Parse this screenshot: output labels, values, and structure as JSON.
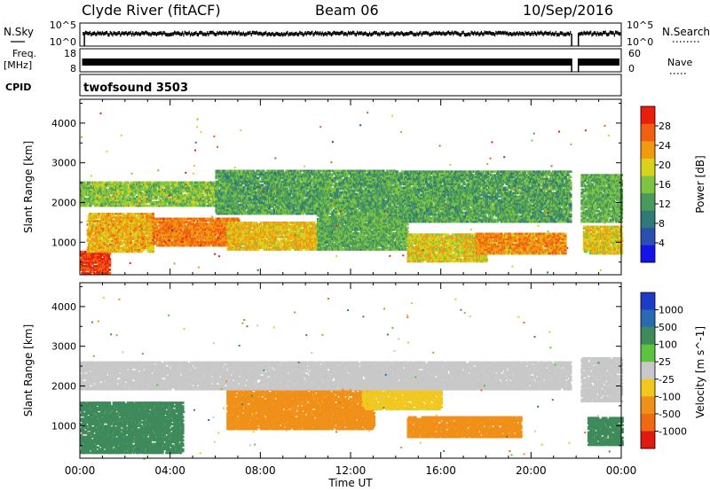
{
  "header": {
    "station": "Clyde River (fitACF)",
    "beam": "Beam 06",
    "date": "10/Sep/2016"
  },
  "strip_labels": {
    "nsky": "N.Sky",
    "freq_line1": "Freq.",
    "freq_line2": "[MHz]",
    "cpid": "CPID",
    "nsearch": "N.Search",
    "nave": "Nave",
    "nsky_top": "10^5",
    "nsky_bottom": "10^0",
    "freq_top": "18",
    "freq_bottom": "8",
    "nsearch_top": "10^5",
    "nsearch_bottom": "10^0",
    "nave_top": "60",
    "nave_bottom": "0"
  },
  "cpid_text": "twofsound 3503",
  "x_axis_title": "Time UT",
  "colors": {
    "power_scale": [
      "#1414e6",
      "#2a4fb0",
      "#2f7a78",
      "#4a9a5c",
      "#7cc442",
      "#d8d21e",
      "#f09a12",
      "#f06010",
      "#e81e0e"
    ],
    "velocity_scale": [
      "#1c3cc8",
      "#2a6ab0",
      "#3f8a5a",
      "#5cc43e",
      "#c8c8c8",
      "#f0c820",
      "#f09018",
      "#ef6a10",
      "#e01a10"
    ]
  },
  "chart_data": [
    {
      "type": "line",
      "name": "N.Sky / N.Search / Freq / Nave strips",
      "x_range_hours": [
        0,
        24
      ],
      "x_ticks": [
        "00:00",
        "04:00",
        "08:00",
        "12:00",
        "16:00",
        "20:00",
        "00:00"
      ],
      "data_gap_hours": [
        21.8,
        22.1
      ],
      "freq_level_mhz": 12,
      "nave_level": 25
    },
    {
      "type": "heatmap",
      "title": "Power",
      "ylabel": "Slant Range [km]",
      "xlabel": "",
      "x_range_hours": [
        0,
        24
      ],
      "ylim": [
        180,
        4600
      ],
      "y_ticks": [
        "1000",
        "2000",
        "3000",
        "4000"
      ],
      "x_ticks": [
        "00:00",
        "04:00",
        "08:00",
        "12:00",
        "16:00",
        "20:00",
        "00:00"
      ],
      "colorbar": {
        "label": "Power [dB]",
        "range": [
          0,
          32
        ],
        "ticks": [
          "4",
          "8",
          "12",
          "16",
          "20",
          "24",
          "28"
        ]
      },
      "bands": [
        {
          "t0": 0.0,
          "t1": 1.3,
          "r0": 200,
          "r1": 750,
          "v": 29
        },
        {
          "t0": 0.3,
          "t1": 3.2,
          "r0": 750,
          "r1": 1700,
          "v": 22
        },
        {
          "t0": 3.2,
          "t1": 7.0,
          "r0": 900,
          "r1": 1600,
          "v": 25
        },
        {
          "t0": 6.5,
          "t1": 10.5,
          "r0": 800,
          "r1": 1500,
          "v": 21
        },
        {
          "t0": 10.5,
          "t1": 14.5,
          "r0": 800,
          "r1": 1700,
          "v": 14
        },
        {
          "t0": 14.5,
          "t1": 18.0,
          "r0": 500,
          "r1": 1200,
          "v": 20
        },
        {
          "t0": 17.5,
          "t1": 21.5,
          "r0": 700,
          "r1": 1200,
          "v": 24
        },
        {
          "t0": 22.3,
          "t1": 24.0,
          "r0": 700,
          "r1": 1400,
          "v": 20
        },
        {
          "t0": 0.0,
          "t1": 6.0,
          "r0": 1900,
          "r1": 2500,
          "v": 16
        },
        {
          "t0": 6.0,
          "t1": 14.0,
          "r0": 1700,
          "r1": 2800,
          "v": 13
        },
        {
          "t0": 14.0,
          "t1": 21.7,
          "r0": 1500,
          "r1": 2800,
          "v": 13
        },
        {
          "t0": 22.2,
          "t1": 24.0,
          "r0": 1500,
          "r1": 2700,
          "v": 14
        }
      ]
    },
    {
      "type": "heatmap",
      "title": "Velocity",
      "ylabel": "Slant Range [km]",
      "xlabel": "Time UT",
      "x_range_hours": [
        0,
        24
      ],
      "ylim": [
        180,
        4600
      ],
      "y_ticks": [
        "1000",
        "2000",
        "3000",
        "4000"
      ],
      "x_ticks": [
        "00:00",
        "04:00",
        "08:00",
        "12:00",
        "16:00",
        "20:00",
        "00:00"
      ],
      "colorbar": {
        "label": "Velocity [m s^-1]",
        "ticks": [
          "1000",
          "500",
          "100",
          "25",
          "-25",
          "-100",
          "-500",
          "-1000"
        ]
      },
      "bands": [
        {
          "t0": 0.0,
          "t1": 4.5,
          "r0": 300,
          "r1": 1600,
          "v": 100
        },
        {
          "t0": 6.5,
          "t1": 13.0,
          "r0": 900,
          "r1": 1900,
          "v": -500
        },
        {
          "t0": 14.5,
          "t1": 19.5,
          "r0": 700,
          "r1": 1200,
          "v": -500
        },
        {
          "t0": 12.5,
          "t1": 16.0,
          "r0": 1400,
          "r1": 2100,
          "v": -100
        },
        {
          "t0": 0.0,
          "t1": 21.7,
          "r0": 1900,
          "r1": 2600,
          "v": 0
        },
        {
          "t0": 22.2,
          "t1": 24.0,
          "r0": 1600,
          "r1": 2700,
          "v": 0
        },
        {
          "t0": 22.5,
          "t1": 24.0,
          "r0": 500,
          "r1": 1200,
          "v": 100
        }
      ]
    }
  ]
}
